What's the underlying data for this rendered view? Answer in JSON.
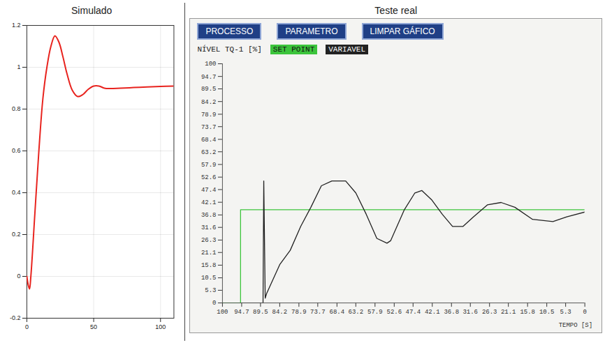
{
  "chart_data": [
    {
      "type": "line",
      "title": "Simulado",
      "xlim": [
        0,
        110
      ],
      "xticks": [
        0,
        50,
        100
      ],
      "ylim": [
        -0.2,
        1.2
      ],
      "yticks": [
        -0.2,
        0,
        0.2,
        0.4,
        0.6,
        0.8,
        1,
        1.2
      ],
      "grid": true,
      "series": [
        {
          "color": "#e8231e",
          "x": [
            0,
            1,
            2,
            3,
            6,
            9,
            12,
            15,
            18,
            21,
            24,
            27,
            30,
            34,
            38,
            42,
            46,
            50,
            54,
            58,
            62,
            70,
            80,
            90,
            100,
            110
          ],
          "values": [
            0,
            -0.04,
            -0.06,
            0,
            0.3,
            0.6,
            0.85,
            1.0,
            1.1,
            1.15,
            1.12,
            1.05,
            0.97,
            0.89,
            0.86,
            0.87,
            0.895,
            0.91,
            0.91,
            0.9,
            0.898,
            0.9,
            0.903,
            0.906,
            0.908,
            0.91
          ]
        }
      ]
    },
    {
      "type": "line",
      "title": "Teste real",
      "buttons": [
        "PROCESSO",
        "PARAMETRO",
        "LIMPAR GÁFICO"
      ],
      "ylabel": "NÍVEL TQ-1 [%]",
      "xlabel": "TEMPO [S]",
      "xlim": [
        100,
        0
      ],
      "xticks": [
        100,
        94.7,
        89.5,
        84.2,
        78.9,
        73.7,
        68.4,
        63.2,
        57.9,
        52.6,
        47.4,
        42.1,
        36.8,
        31.6,
        26.3,
        21.1,
        15.8,
        10.5,
        5.3,
        0
      ],
      "ylim": [
        0,
        100
      ],
      "yticks": [
        0,
        5.3,
        10.5,
        15.8,
        21.1,
        26.3,
        31.6,
        36.8,
        42.1,
        47.4,
        52.6,
        57.9,
        63.2,
        68.4,
        73.7,
        78.9,
        84.2,
        89.5,
        94.7,
        100
      ],
      "grid": false,
      "legend": "top",
      "series": [
        {
          "name": "SET POINT",
          "color": "#3cc43c",
          "x": [
            100,
            95,
            95,
            0
          ],
          "values": [
            0,
            0,
            39,
            39
          ]
        },
        {
          "name": "VARIAVEL",
          "color": "#222222",
          "x": [
            100,
            88.8,
            88.6,
            88.2,
            87.8,
            84.2,
            81.3,
            78.4,
            75.6,
            72.7,
            69.8,
            66,
            63.2,
            60.3,
            57.4,
            54.6,
            53.6,
            49.8,
            46.9,
            45,
            42.2,
            39.3,
            36.5,
            33.6,
            30.7,
            26.9,
            23.1,
            19.3,
            14.5,
            8.8,
            5,
            0
          ],
          "values": [
            0,
            0,
            51,
            2,
            4,
            16,
            22,
            32,
            40,
            49,
            51,
            51,
            46,
            37,
            27,
            25,
            26,
            39,
            46,
            47,
            43,
            37,
            32,
            32,
            36,
            41,
            42,
            40,
            35,
            34,
            36,
            38
          ]
        }
      ]
    }
  ]
}
